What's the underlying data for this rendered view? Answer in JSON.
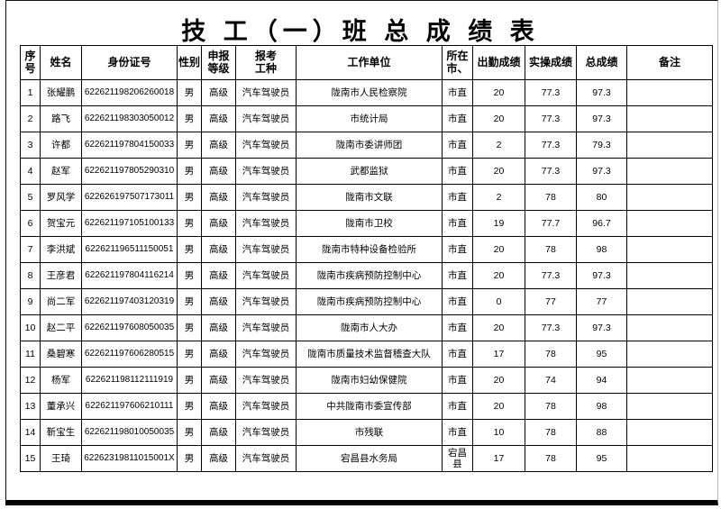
{
  "page": {
    "title": "技 工（一）班 总 成 绩 表"
  },
  "colors": {
    "text": "#000000",
    "border": "#000000",
    "background": "#ffffff"
  },
  "table": {
    "headers": [
      "序\n号",
      "姓名",
      "身份证号",
      "性别",
      "申报\n等级",
      "报考\n工种",
      "工作单位",
      "所在\n市、",
      "出勤成绩",
      "实操成绩",
      "总成绩",
      "备注"
    ],
    "rows": [
      [
        "1",
        "张耀鹏",
        "622621198206260018",
        "男",
        "高级",
        "汽车驾驶员",
        "陇南市人民检察院",
        "市直",
        "20",
        "77.3",
        "97.3",
        ""
      ],
      [
        "2",
        "路飞",
        "622621198303050012",
        "男",
        "高级",
        "汽车驾驶员",
        "市统计局",
        "市直",
        "20",
        "77.3",
        "97.3",
        ""
      ],
      [
        "3",
        "许都",
        "622621197804150033",
        "男",
        "高级",
        "汽车驾驶员",
        "陇南市委讲师团",
        "市直",
        "2",
        "77.3",
        "79.3",
        ""
      ],
      [
        "4",
        "赵军",
        "622621197805290310",
        "男",
        "高级",
        "汽车驾驶员",
        "武都监狱",
        "市直",
        "20",
        "77.3",
        "97.3",
        ""
      ],
      [
        "5",
        "罗风学",
        "622626197507173011",
        "男",
        "高级",
        "汽车驾驶员",
        "陇南市文联",
        "市直",
        "2",
        "78",
        "80",
        ""
      ],
      [
        "6",
        "贺宝元",
        "622621197105100133",
        "男",
        "高级",
        "汽车驾驶员",
        "陇南市卫校",
        "市直",
        "19",
        "77.7",
        "96.7",
        ""
      ],
      [
        "7",
        "李洪斌",
        "622621196511150051",
        "男",
        "高级",
        "汽车驾驶员",
        "陇南市特种设备检验所",
        "市直",
        "20",
        "78",
        "98",
        ""
      ],
      [
        "8",
        "王彦君",
        "622621197804116214",
        "男",
        "高级",
        "汽车驾驶员",
        "陇南市疾病预防控制中心",
        "市直",
        "20",
        "77.3",
        "97.3",
        ""
      ],
      [
        "9",
        "尚二军",
        "622621197403120319",
        "男",
        "高级",
        "汽车驾驶员",
        "陇南市疾病预防控制中心",
        "市直",
        "0",
        "77",
        "77",
        ""
      ],
      [
        "10",
        "赵二平",
        "622621197608050035",
        "男",
        "高级",
        "汽车驾驶员",
        "陇南市人大办",
        "市直",
        "20",
        "77.3",
        "97.3",
        ""
      ],
      [
        "11",
        "桑碧寒",
        "622621197606280515",
        "男",
        "高级",
        "汽车驾驶员",
        "陇南市质量技术监督稽查大队",
        "市直",
        "17",
        "78",
        "95",
        ""
      ],
      [
        "12",
        "杨军",
        "622621198112111919",
        "男",
        "高级",
        "汽车驾驶员",
        "陇南市妇幼保健院",
        "市直",
        "20",
        "74",
        "94",
        ""
      ],
      [
        "13",
        "董承兴",
        "622621197606210111",
        "男",
        "高级",
        "汽车驾驶员",
        "中共陇南市委宣传部",
        "市直",
        "20",
        "78",
        "98",
        ""
      ],
      [
        "14",
        "靳宝生",
        "622621198010050035",
        "男",
        "高级",
        "汽车驾驶员",
        "市残联",
        "市直",
        "10",
        "78",
        "88",
        ""
      ],
      [
        "15",
        "王琦",
        "62262319811015001X",
        "男",
        "高级",
        "汽车驾驶员",
        "宕昌县水务局",
        "宕昌县",
        "17",
        "78",
        "95",
        ""
      ]
    ]
  }
}
